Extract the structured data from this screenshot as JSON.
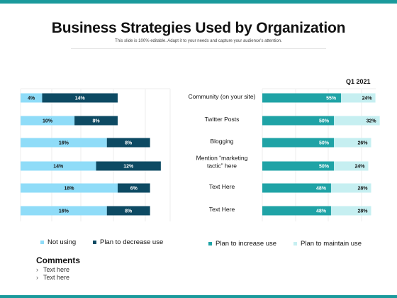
{
  "title": "Business Strategies Used by Organization",
  "subtitle": "This slide is 100% editable. Adapt it to your needs and capture your audience's attention.",
  "period": "Q1 2021",
  "colors": {
    "accent": "#1a9a9c",
    "not_using": "#8fdcf8",
    "plan_to_decrease": "#0d4a63",
    "plan_to_increase": "#1fa3a6",
    "plan_to_maintain": "#c6eff1"
  },
  "legend": {
    "not_using": "Not using",
    "plan_to_decrease": "Plan to decrease use",
    "plan_to_increase": "Plan to increase use",
    "plan_to_maintain": "Plan to maintain use"
  },
  "comments": {
    "title": "Comments",
    "items": [
      "Text here",
      "Text here"
    ]
  },
  "chart_data": {
    "type": "bar",
    "orientation": "horizontal",
    "categories": [
      "Community (on your site)",
      "Twitter Posts",
      "Blogging",
      "Mention “marketing tactic” here",
      "Text Here",
      "Text Here"
    ],
    "category_lines": [
      [
        "Community (on your site)"
      ],
      [
        "Twitter Posts"
      ],
      [
        "Blogging"
      ],
      [
        "Mention “marketing",
        "tactic” here"
      ],
      [
        "Text Here"
      ],
      [
        "Text Here"
      ]
    ],
    "left_series": [
      {
        "name": "Not using",
        "values": [
          4,
          10,
          16,
          14,
          18,
          16
        ],
        "labels": [
          "4%",
          "10%",
          "16%",
          "14%",
          "18%",
          "16%"
        ]
      },
      {
        "name": "Plan to decrease use",
        "values": [
          14,
          8,
          8,
          12,
          6,
          8
        ],
        "labels": [
          "14%",
          "8%",
          "8%",
          "12%",
          "6%",
          "8%"
        ]
      }
    ],
    "right_series": [
      {
        "name": "Plan to increase use",
        "values": [
          55,
          50,
          50,
          50,
          48,
          48
        ],
        "labels": [
          "55%",
          "50%",
          "50%",
          "50%",
          "48%",
          "48%"
        ]
      },
      {
        "name": "Plan to maintain use",
        "values": [
          24,
          32,
          26,
          24,
          28,
          28
        ],
        "labels": [
          "24%",
          "32%",
          "26%",
          "24%",
          "28%",
          "28%"
        ]
      }
    ]
  }
}
